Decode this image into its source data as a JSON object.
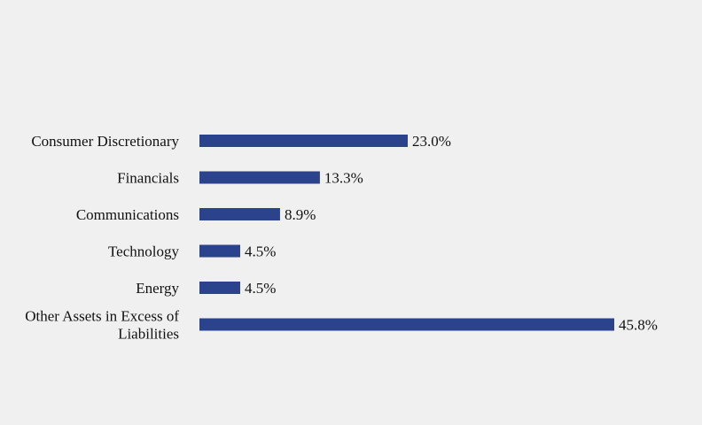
{
  "chart_data": {
    "type": "bar",
    "orientation": "horizontal",
    "categories": [
      "Consumer Discretionary",
      "Financials",
      "Communications",
      "Technology",
      "Energy",
      "Other Assets in Excess of Liabilities"
    ],
    "category_lines": [
      [
        "Consumer Discretionary"
      ],
      [
        "Financials"
      ],
      [
        "Communications"
      ],
      [
        "Technology"
      ],
      [
        "Energy"
      ],
      [
        "Other Assets in Excess of",
        "Liabilities"
      ]
    ],
    "values": [
      23.0,
      13.3,
      8.9,
      4.5,
      4.5,
      45.8
    ],
    "value_labels": [
      "23.0%",
      "13.3%",
      "8.9%",
      "4.5%",
      "4.5%",
      "45.8%"
    ],
    "title": "",
    "xlabel": "",
    "ylabel": "",
    "xlim": [
      0,
      45.8
    ],
    "grid": false,
    "legend": "none",
    "bar_color": "#2b428c",
    "background_color": "#f0f0f0"
  }
}
